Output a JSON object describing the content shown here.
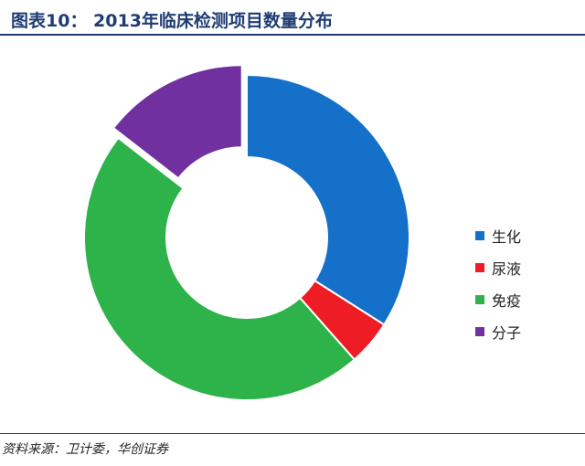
{
  "header": {
    "title": "图表10： 2013年临床检测项目数量分布"
  },
  "chart_data": {
    "type": "pie",
    "title": "",
    "categories": [
      "生化",
      "尿液",
      "免疫",
      "分子"
    ],
    "values": [
      34,
      4.5,
      47,
      14.5
    ],
    "exploded": [
      "分子"
    ],
    "colors": [
      "#1470c8",
      "#ee1c23",
      "#2db34a",
      "#7030a0"
    ],
    "legend_position": "right"
  },
  "footer": {
    "source": "资料来源：卫计委，华创证券"
  }
}
